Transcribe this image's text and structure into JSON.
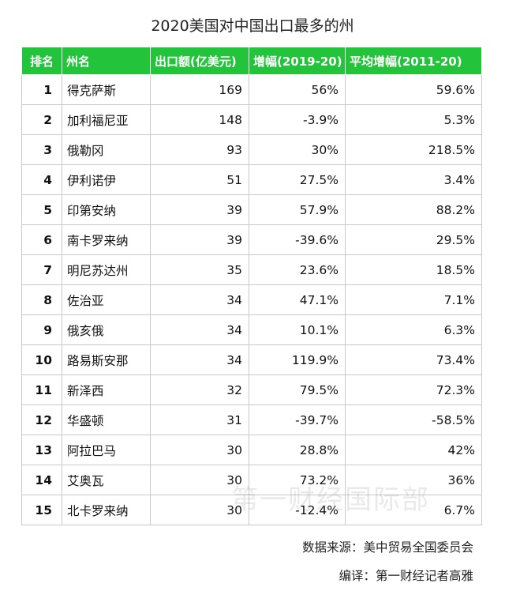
{
  "title": "2020美国对中国出口最多的州",
  "headers": {
    "rank": "排名",
    "state": "州名",
    "export": "出口额(亿美元)",
    "growth": "增幅(2019-20)",
    "avg_growth": "平均增幅(2011-20)"
  },
  "rows": [
    {
      "rank": "1",
      "state": "得克萨斯",
      "export": "169",
      "growth": "56%",
      "avg_growth": "59.6%"
    },
    {
      "rank": "2",
      "state": "加利福尼亚",
      "export": "148",
      "growth": "-3.9%",
      "avg_growth": "5.3%"
    },
    {
      "rank": "3",
      "state": "俄勒冈",
      "export": "93",
      "growth": "30%",
      "avg_growth": "218.5%"
    },
    {
      "rank": "4",
      "state": "伊利诺伊",
      "export": "51",
      "growth": "27.5%",
      "avg_growth": "3.4%"
    },
    {
      "rank": "5",
      "state": "印第安纳",
      "export": "39",
      "growth": "57.9%",
      "avg_growth": "88.2%"
    },
    {
      "rank": "6",
      "state": "南卡罗来纳",
      "export": "39",
      "growth": "-39.6%",
      "avg_growth": "29.5%"
    },
    {
      "rank": "7",
      "state": "明尼苏达州",
      "export": "35",
      "growth": "23.6%",
      "avg_growth": "18.5%"
    },
    {
      "rank": "8",
      "state": "佐治亚",
      "export": "34",
      "growth": "47.1%",
      "avg_growth": "7.1%"
    },
    {
      "rank": "9",
      "state": "俄亥俄",
      "export": "34",
      "growth": "10.1%",
      "avg_growth": "6.3%"
    },
    {
      "rank": "10",
      "state": "路易斯安那",
      "export": "34",
      "growth": "119.9%",
      "avg_growth": "73.4%"
    },
    {
      "rank": "11",
      "state": "新泽西",
      "export": "32",
      "growth": "79.5%",
      "avg_growth": "72.3%"
    },
    {
      "rank": "12",
      "state": "华盛顿",
      "export": "31",
      "growth": "-39.7%",
      "avg_growth": "-58.5%"
    },
    {
      "rank": "13",
      "state": "阿拉巴马",
      "export": "30",
      "growth": "28.8%",
      "avg_growth": "42%"
    },
    {
      "rank": "14",
      "state": "艾奥瓦",
      "export": "30",
      "growth": "73.2%",
      "avg_growth": "36%"
    },
    {
      "rank": "15",
      "state": "北卡罗来纳",
      "export": "30",
      "growth": "-12.4%",
      "avg_growth": "6.7%"
    }
  ],
  "source": "数据来源：美中贸易全国委员会",
  "editor": "编译：第一财经记者高雅",
  "watermark": "第一财经国际部",
  "colors": {
    "header_bg": "#23c43b",
    "header_text": "#ffffff",
    "grid": "#c9c9c9"
  }
}
